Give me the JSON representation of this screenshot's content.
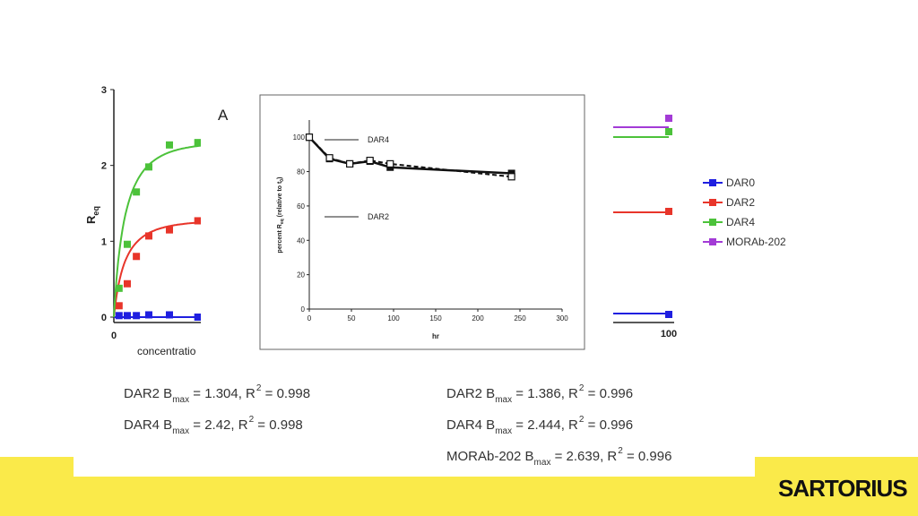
{
  "chart_data": [
    {
      "type": "scatter",
      "ylabel": "R",
      "ylabel_sub": "eq",
      "xlabel": "concentratio",
      "yticks": [
        "0",
        "1",
        "2",
        "3"
      ],
      "xticks_left": [
        "0"
      ],
      "xticks_right": [
        "100"
      ],
      "ylim": [
        0,
        3
      ],
      "series": [
        {
          "name": "DAR0",
          "color": "#1f1fe0",
          "x": [
            0.2,
            0.6,
            1.2,
            2.4,
            6,
            18,
            55
          ],
          "y": [
            0.02,
            0.02,
            0.02,
            0.03,
            0.03,
            0.0,
            0.0
          ]
        },
        {
          "name": "DAR2",
          "color": "#e8352a",
          "x": [
            0.2,
            0.6,
            1.2,
            2.4,
            6,
            18,
            55
          ],
          "y": [
            0.15,
            0.44,
            0.8,
            1.07,
            1.15,
            1.27,
            1.27
          ]
        },
        {
          "name": "DAR4",
          "color": "#4cc23a",
          "x": [
            0.2,
            0.6,
            1.2,
            2.4,
            6,
            18,
            55
          ],
          "y": [
            0.38,
            0.96,
            1.65,
            1.98,
            2.27,
            2.3,
            2.3
          ]
        },
        {
          "name": "MORAb-202",
          "color": "#a33bd6",
          "x": [
            55
          ],
          "y": [
            2.5
          ]
        }
      ],
      "legend_position": "right"
    },
    {
      "type": "line",
      "panel_label": "A",
      "xlabel": "hr",
      "ylabel": "percent R",
      "ylabel_sub": "eq",
      "ylabel_suffix": " (relative to t",
      "ylabel_suffix_sub": "0",
      "ylabel_end": ")",
      "xlim": [
        0,
        300
      ],
      "ylim": [
        0,
        110
      ],
      "xticks": [
        0,
        50,
        100,
        150,
        200,
        250,
        300
      ],
      "yticks": [
        0,
        20,
        40,
        60,
        80,
        100
      ],
      "legend_labels": [
        "DAR4",
        "DAR2"
      ],
      "series": [
        {
          "style": "solid",
          "marker": "filled-square",
          "x": [
            0,
            24,
            48,
            72,
            96,
            240
          ],
          "y": [
            100,
            87.5,
            84.5,
            86,
            82.5,
            79
          ]
        },
        {
          "style": "dashed",
          "marker": "open-square",
          "x": [
            0,
            24,
            48,
            72,
            96,
            240
          ],
          "y": [
            100,
            88,
            84.5,
            86.5,
            84.5,
            77
          ]
        }
      ]
    }
  ],
  "stats_left": [
    {
      "label": "DAR2 B",
      "sub": "max",
      "text": " = 1.304, R",
      "sup": "2",
      "tail": " = 0.998"
    },
    {
      "label": "DAR4 B",
      "sub": "max",
      "text": " = 2.42, R",
      "sup": "2",
      "tail": " = 0.998"
    }
  ],
  "stats_right": [
    {
      "label": "DAR2 B",
      "sub": "max",
      "text": " = 1.386, R",
      "sup": "2",
      "tail": " = 0.996"
    },
    {
      "label": "DAR4 B",
      "sub": "max",
      "text": " = 2.444, R",
      "sup": "2",
      "tail": " = 0.996"
    },
    {
      "label": "MORAb-202 B",
      "sub": "max",
      "text": " = 2.639, R",
      "sup": "2",
      "tail": " = 0.996"
    }
  ],
  "logo_text": "SARTORIUS"
}
